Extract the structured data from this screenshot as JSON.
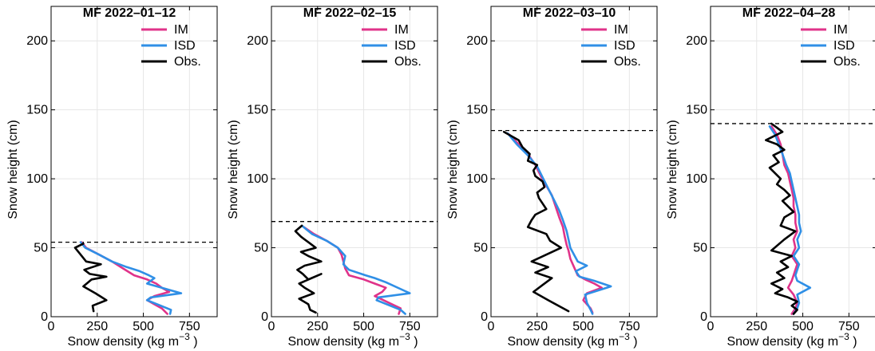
{
  "colors": {
    "IM": "#e0338a",
    "ISD": "#2f8fe6",
    "Obs.": "#000000",
    "snow_surface": "#000000"
  },
  "chart_data": [
    {
      "type": "line",
      "title": "MF 2022–01–12",
      "xlabel": "Snow density (kg  m",
      "xlabel_sup": "−3",
      "xlabel_close": " )",
      "ylabel": "Snow height (cm)",
      "xlim": [
        0,
        900
      ],
      "ylim": [
        0,
        225
      ],
      "xticks": [
        0,
        250,
        500,
        750
      ],
      "yticks": [
        0,
        50,
        100,
        150,
        200
      ],
      "grid": true,
      "legend": "top-right",
      "snow_surface": 54,
      "series": [
        {
          "name": "IM",
          "x": [
            165,
            190,
            260,
            330,
            390,
            450,
            520,
            570,
            600,
            640,
            560,
            520,
            600,
            630
          ],
          "y": [
            54,
            50,
            45,
            40,
            35,
            30,
            27,
            24,
            21,
            18,
            15,
            12,
            6,
            2
          ]
        },
        {
          "name": "ISD",
          "x": [
            160,
            185,
            260,
            330,
            410,
            480,
            530,
            560,
            520,
            600,
            705,
            540,
            520,
            650,
            645
          ],
          "y": [
            54,
            50,
            45,
            40,
            36,
            33,
            30,
            28,
            24,
            21,
            17,
            14,
            12,
            5,
            2
          ]
        },
        {
          "name": "Obs.",
          "x": [
            175,
            130,
            160,
            190,
            270,
            180,
            210,
            300,
            220,
            175,
            240,
            300,
            225,
            230
          ],
          "y": [
            53,
            50,
            45,
            40,
            38,
            34,
            31,
            29,
            27,
            22,
            17,
            12,
            8,
            4
          ]
        }
      ]
    },
    {
      "type": "line",
      "title": "MF 2022–02–15",
      "xlabel": "Snow density (kg  m",
      "xlabel_sup": "−3",
      "xlabel_close": " )",
      "ylabel": "Snow height (cm)",
      "xlim": [
        0,
        900
      ],
      "ylim": [
        0,
        225
      ],
      "xticks": [
        0,
        250,
        500,
        750
      ],
      "yticks": [
        0,
        50,
        100,
        150,
        200
      ],
      "grid": true,
      "legend": "top-right",
      "snow_surface": 69,
      "series": [
        {
          "name": "IM",
          "x": [
            175,
            230,
            300,
            360,
            380,
            390,
            400,
            420,
            500,
            560,
            620,
            600,
            560,
            700,
            690
          ],
          "y": [
            65,
            60,
            55,
            50,
            45,
            40,
            35,
            30,
            27,
            24,
            21,
            18,
            15,
            6,
            2
          ]
        },
        {
          "name": "ISD",
          "x": [
            165,
            220,
            300,
            360,
            400,
            390,
            420,
            510,
            560,
            620,
            750,
            580,
            570,
            700,
            725
          ],
          "y": [
            66,
            60,
            55,
            50,
            44,
            38,
            34,
            30,
            28,
            25,
            17,
            14,
            12,
            5,
            2
          ]
        },
        {
          "name": "Obs.",
          "x": [
            165,
            130,
            160,
            200,
            240,
            160,
            200,
            270,
            180,
            140,
            170,
            200,
            270,
            150,
            180,
            230,
            150,
            200,
            210,
            240
          ],
          "y": [
            66,
            62,
            58,
            54,
            50,
            47,
            44,
            40,
            37,
            34,
            31,
            27,
            31,
            24,
            21,
            17,
            13,
            9,
            5,
            3
          ]
        }
      ]
    },
    {
      "type": "line",
      "title": "MF 2022–03–10",
      "xlabel": "Snow density (kg  m",
      "xlabel_sup": "−3",
      "xlabel_close": " )",
      "ylabel": "Snow height (cm)",
      "xlim": [
        0,
        900
      ],
      "ylim": [
        0,
        225
      ],
      "xticks": [
        0,
        250,
        500,
        750
      ],
      "yticks": [
        0,
        50,
        100,
        150,
        200
      ],
      "grid": true,
      "legend": "top-right",
      "snow_surface": 135,
      "series": [
        {
          "name": "IM",
          "x": [
            100,
            150,
            200,
            240,
            270,
            300,
            330,
            350,
            370,
            390,
            400,
            410,
            420,
            430,
            450,
            470,
            510,
            560,
            600,
            520,
            500,
            540,
            550
          ],
          "y": [
            132,
            125,
            118,
            110,
            102,
            95,
            88,
            80,
            72,
            65,
            58,
            52,
            48,
            42,
            36,
            30,
            27,
            24,
            21,
            17,
            12,
            6,
            3
          ]
        },
        {
          "name": "ISD",
          "x": [
            90,
            140,
            200,
            250,
            280,
            310,
            340,
            370,
            390,
            410,
            420,
            430,
            450,
            470,
            520,
            460,
            480,
            560,
            650,
            510,
            520,
            540,
            550
          ],
          "y": [
            133,
            125,
            117,
            109,
            101,
            93,
            85,
            77,
            70,
            62,
            56,
            50,
            45,
            40,
            37,
            33,
            29,
            26,
            22,
            16,
            10,
            5,
            2
          ]
        },
        {
          "name": "Obs.",
          "x": [
            70,
            150,
            170,
            210,
            200,
            250,
            230,
            240,
            280,
            290,
            250,
            260,
            280,
            300,
            240,
            220,
            200,
            300,
            320,
            380,
            300,
            220,
            310,
            240,
            330,
            280,
            230,
            310,
            420
          ],
          "y": [
            134,
            128,
            123,
            118,
            113,
            110,
            106,
            102,
            98,
            94,
            90,
            86,
            82,
            78,
            74,
            70,
            65,
            60,
            55,
            50,
            45,
            40,
            36,
            32,
            28,
            23,
            18,
            12,
            4
          ]
        }
      ]
    },
    {
      "type": "line",
      "title": "MF 2022–04–28",
      "xlabel": "Snow density (kg  m",
      "xlabel_sup": "−3",
      "xlabel_close": " )",
      "ylabel": "Snow height (cm)",
      "xlim": [
        0,
        900
      ],
      "ylim": [
        0,
        225
      ],
      "xticks": [
        0,
        250,
        500,
        750
      ],
      "yticks": [
        0,
        50,
        100,
        150,
        200
      ],
      "grid": true,
      "legend": "top-right",
      "snow_surface": 140,
      "series": [
        {
          "name": "IM",
          "x": [
            330,
            360,
            380,
            390,
            400,
            420,
            430,
            440,
            450,
            450,
            460,
            460,
            470,
            450,
            460,
            440,
            470,
            460,
            450,
            440,
            420,
            450,
            470,
            460,
            440
          ],
          "y": [
            138,
            132,
            125,
            118,
            110,
            104,
            98,
            92,
            86,
            80,
            74,
            68,
            62,
            56,
            50,
            44,
            38,
            34,
            30,
            26,
            21,
            16,
            10,
            6,
            2
          ]
        },
        {
          "name": "ISD",
          "x": [
            320,
            350,
            370,
            390,
            410,
            430,
            440,
            450,
            460,
            470,
            480,
            480,
            490,
            470,
            480,
            450,
            480,
            470,
            460,
            470,
            540,
            470,
            480,
            470,
            450
          ],
          "y": [
            138,
            132,
            125,
            118,
            110,
            104,
            98,
            92,
            86,
            80,
            74,
            68,
            62,
            56,
            50,
            44,
            38,
            34,
            30,
            26,
            21,
            16,
            10,
            6,
            2
          ]
        },
        {
          "name": "Obs.",
          "x": [
            330,
            360,
            390,
            300,
            360,
            400,
            340,
            370,
            320,
            350,
            380,
            360,
            400,
            430,
            390,
            420,
            450,
            400,
            380,
            460,
            400,
            330,
            440,
            380,
            420,
            360,
            400,
            330,
            390,
            350,
            420,
            470,
            440,
            470,
            450
          ],
          "y": [
            140,
            137,
            134,
            128,
            125,
            121,
            117,
            112,
            108,
            104,
            100,
            96,
            92,
            88,
            84,
            80,
            76,
            72,
            66,
            62,
            56,
            48,
            44,
            40,
            36,
            32,
            28,
            24,
            20,
            17,
            14,
            11,
            8,
            5,
            2
          ]
        }
      ]
    }
  ]
}
